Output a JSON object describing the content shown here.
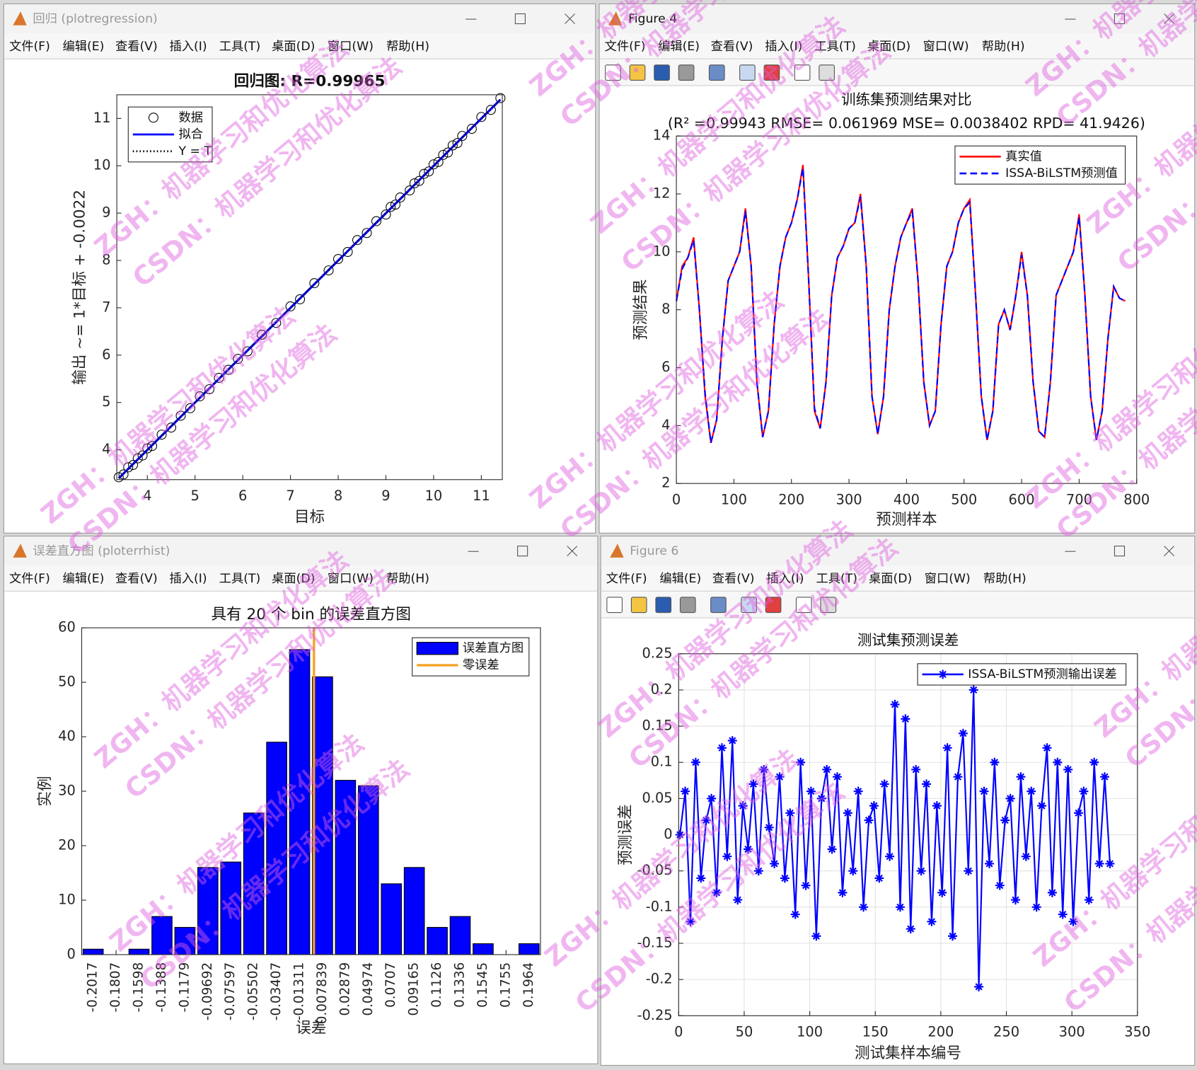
{
  "windows": [
    {
      "title": "回归 (plotregression)"
    },
    {
      "title": "Figure 4"
    },
    {
      "title": "误差直方图 (ploterrhist)"
    },
    {
      "title": "Figure 6"
    }
  ],
  "menu": [
    "文件(F)",
    "编辑(E)",
    "查看(V)",
    "插入(I)",
    "工具(T)",
    "桌面(D)",
    "窗口(W)",
    "帮助(H)"
  ],
  "watermarks": [
    "ZGH：机器学习和优化算法",
    "CSDN：机器学习和优化算法"
  ],
  "chart_data": [
    {
      "type": "scatter",
      "title": "回归图: R=0.99965",
      "x_label": "目标",
      "y_label": "输出 ~= 1*目标 + -0.0022",
      "xlim": [
        3.36,
        11.44
      ],
      "ylim": [
        3.37,
        11.5
      ],
      "xticks": [
        4,
        5,
        6,
        7,
        8,
        9,
        10,
        11
      ],
      "yticks": [
        4,
        5,
        6,
        7,
        8,
        9,
        10,
        11
      ],
      "grid": false,
      "legend": "northwest",
      "series": [
        {
          "name": "数据",
          "color": "#000000",
          "marker": "o",
          "linestyle": "none",
          "x": [
            3.4,
            3.5,
            3.6,
            3.7,
            3.8,
            3.9,
            4.0,
            4.1,
            4.3,
            4.5,
            4.7,
            4.9,
            5.1,
            5.3,
            5.5,
            5.7,
            5.9,
            6.1,
            6.4,
            6.7,
            7.0,
            7.2,
            7.5,
            7.8,
            8.0,
            8.2,
            8.4,
            8.6,
            8.8,
            9.0,
            9.1,
            9.2,
            9.3,
            9.5,
            9.6,
            9.7,
            9.8,
            9.9,
            10.0,
            10.1,
            10.2,
            10.3,
            10.4,
            10.5,
            10.6,
            10.8,
            11.0,
            11.2,
            11.4
          ],
          "values": [
            3.42,
            3.48,
            3.63,
            3.68,
            3.82,
            3.88,
            4.03,
            4.08,
            4.32,
            4.47,
            4.72,
            4.88,
            5.13,
            5.28,
            5.52,
            5.69,
            5.92,
            6.08,
            6.43,
            6.68,
            7.03,
            7.18,
            7.52,
            7.79,
            8.03,
            8.18,
            8.43,
            8.58,
            8.83,
            8.97,
            9.13,
            9.18,
            9.33,
            9.48,
            9.63,
            9.68,
            9.83,
            9.88,
            10.03,
            10.08,
            10.23,
            10.28,
            10.43,
            10.48,
            10.63,
            10.78,
            11.03,
            11.18,
            11.43
          ]
        },
        {
          "name": "拟合",
          "color": "#0000ff",
          "marker": "none",
          "linestyle": "-",
          "x": [
            3.4,
            11.4
          ],
          "values": [
            3.3978,
            11.3978
          ]
        },
        {
          "name": "Y = T",
          "color": "#000000",
          "marker": "none",
          "linestyle": ":",
          "x": [
            3.4,
            11.4
          ],
          "values": [
            3.4,
            11.4
          ]
        }
      ]
    },
    {
      "type": "line",
      "title": "训练集预测结果对比",
      "subtitle": "(R² =0.99943 RMSE= 0.061969 MSE= 0.0038402 RPD= 41.9426)",
      "x_label": "预测样本",
      "y_label": "预测结果",
      "xlim": [
        0,
        800
      ],
      "ylim": [
        2,
        14
      ],
      "xticks": [
        0,
        100,
        200,
        300,
        400,
        500,
        600,
        700,
        800
      ],
      "yticks": [
        2,
        4,
        6,
        8,
        10,
        12,
        14
      ],
      "grid": false,
      "legend": "northeast",
      "x": [
        0,
        10,
        20,
        30,
        40,
        50,
        60,
        70,
        80,
        90,
        100,
        110,
        120,
        130,
        140,
        150,
        160,
        170,
        180,
        190,
        200,
        210,
        220,
        230,
        240,
        250,
        260,
        270,
        280,
        290,
        300,
        310,
        320,
        330,
        340,
        350,
        360,
        370,
        380,
        390,
        400,
        410,
        420,
        430,
        440,
        450,
        460,
        470,
        480,
        490,
        500,
        510,
        520,
        530,
        540,
        550,
        560,
        570,
        580,
        590,
        600,
        610,
        620,
        630,
        640,
        650,
        660,
        670,
        680,
        690,
        700,
        710,
        720,
        730,
        740,
        750,
        760,
        770,
        780
      ],
      "series": [
        {
          "name": "真实值",
          "color": "#ff0000",
          "marker": "none",
          "linestyle": "-",
          "values": [
            8.3,
            9.5,
            9.8,
            10.5,
            8.0,
            5.0,
            3.4,
            4.2,
            7.0,
            9.0,
            9.5,
            10.0,
            11.5,
            9.5,
            5.5,
            3.6,
            4.5,
            7.5,
            9.5,
            10.5,
            11.0,
            11.8,
            13.0,
            9.0,
            4.5,
            3.9,
            5.5,
            8.5,
            9.8,
            10.2,
            10.8,
            11.0,
            12.0,
            9.5,
            5.0,
            3.7,
            5.0,
            8.0,
            9.5,
            10.5,
            11.0,
            11.5,
            9.0,
            5.5,
            4.0,
            4.5,
            7.5,
            9.5,
            10.0,
            11.0,
            11.5,
            11.8,
            8.5,
            5.0,
            3.5,
            4.5,
            7.5,
            8.0,
            7.3,
            8.5,
            10.0,
            8.5,
            5.5,
            3.8,
            3.6,
            5.5,
            8.5,
            9.0,
            9.5,
            10.0,
            11.3,
            8.5,
            5.0,
            3.5,
            4.5,
            7.0,
            8.8,
            8.4,
            8.3
          ]
        },
        {
          "name": "ISSA-BiLSTM预测值",
          "color": "#0000ff",
          "marker": "none",
          "linestyle": "--",
          "values": [
            8.3,
            9.4,
            9.8,
            10.4,
            8.0,
            5.1,
            3.4,
            4.2,
            7.0,
            9.0,
            9.5,
            10.0,
            11.4,
            9.5,
            5.5,
            3.6,
            4.5,
            7.5,
            9.5,
            10.5,
            11.0,
            11.8,
            12.9,
            9.0,
            4.6,
            3.9,
            5.5,
            8.5,
            9.8,
            10.2,
            10.8,
            11.0,
            11.9,
            9.5,
            5.0,
            3.7,
            5.0,
            8.0,
            9.5,
            10.5,
            11.0,
            11.4,
            9.0,
            5.5,
            4.0,
            4.5,
            7.5,
            9.5,
            10.0,
            11.0,
            11.5,
            11.7,
            8.5,
            5.0,
            3.5,
            4.5,
            7.5,
            8.0,
            7.3,
            8.5,
            9.9,
            8.5,
            5.5,
            3.8,
            3.6,
            5.5,
            8.5,
            9.0,
            9.5,
            10.0,
            11.2,
            8.5,
            5.0,
            3.5,
            4.5,
            7.0,
            8.8,
            8.4,
            8.3
          ]
        }
      ]
    },
    {
      "type": "bar",
      "title": "具有 20 个 bin 的误差直方图",
      "x_label": "误差",
      "y_label": "实例",
      "categories": [
        -0.2017,
        -0.1807,
        -0.1598,
        -0.1388,
        -0.1179,
        -0.09692,
        -0.07597,
        -0.05502,
        -0.03407,
        -0.01311,
        0.007839,
        0.02879,
        0.04974,
        0.0707,
        0.09165,
        0.1126,
        0.1336,
        0.1545,
        0.1755,
        0.1964
      ],
      "ylim": [
        0,
        60
      ],
      "yticks": [
        0,
        10,
        20,
        30,
        40,
        50,
        60
      ],
      "grid": false,
      "legend": "northeast",
      "series": [
        {
          "name": "误差直方图",
          "color": "#0000ff",
          "values": [
            1,
            0,
            1,
            7,
            5,
            16,
            17,
            26,
            39,
            56,
            51,
            32,
            31,
            13,
            16,
            5,
            7,
            2,
            0,
            2
          ]
        }
      ],
      "zero_line": {
        "name": "零误差",
        "value": 0,
        "color": "#f5a020"
      }
    },
    {
      "type": "line",
      "title": "测试集预测误差",
      "x_label": "测试集样本编号",
      "y_label": "预测误差",
      "xlim": [
        0,
        350
      ],
      "ylim": [
        -0.25,
        0.25
      ],
      "xticks": [
        0,
        50,
        100,
        150,
        200,
        250,
        300,
        350
      ],
      "yticks": [
        -0.25,
        -0.2,
        -0.15,
        -0.1,
        -0.05,
        0,
        0.05,
        0.1,
        0.15,
        0.2,
        0.25
      ],
      "grid": true,
      "legend": "northeast",
      "x": [
        1,
        5,
        9,
        13,
        17,
        21,
        25,
        29,
        33,
        37,
        41,
        45,
        49,
        53,
        57,
        61,
        65,
        69,
        73,
        77,
        81,
        85,
        89,
        93,
        97,
        101,
        105,
        109,
        113,
        117,
        121,
        125,
        129,
        133,
        137,
        141,
        145,
        149,
        153,
        157,
        161,
        165,
        169,
        173,
        177,
        181,
        185,
        189,
        193,
        197,
        201,
        205,
        209,
        213,
        217,
        221,
        225,
        229,
        233,
        237,
        241,
        245,
        249,
        253,
        257,
        261,
        265,
        269,
        273,
        277,
        281,
        285,
        289,
        293,
        297,
        301,
        305,
        309,
        313,
        317,
        321,
        325,
        329
      ],
      "series": [
        {
          "name": "ISSA-BiLSTM预测输出误差",
          "color": "#0000ff",
          "marker": "*",
          "linestyle": "-",
          "values": [
            0.0,
            0.06,
            -0.12,
            0.1,
            -0.06,
            0.02,
            0.05,
            -0.08,
            0.12,
            -0.03,
            0.13,
            -0.09,
            0.04,
            -0.02,
            0.07,
            -0.05,
            0.09,
            0.01,
            -0.04,
            0.08,
            -0.06,
            0.03,
            -0.11,
            0.1,
            -0.07,
            0.06,
            -0.14,
            0.05,
            0.09,
            -0.02,
            0.08,
            -0.08,
            0.03,
            -0.05,
            0.06,
            -0.1,
            0.02,
            0.04,
            -0.06,
            0.07,
            -0.03,
            0.18,
            -0.1,
            0.16,
            -0.13,
            0.09,
            -0.05,
            0.07,
            -0.12,
            0.04,
            -0.08,
            0.12,
            -0.14,
            0.08,
            0.14,
            -0.05,
            0.2,
            -0.21,
            0.06,
            -0.04,
            0.1,
            -0.07,
            0.02,
            0.05,
            -0.09,
            0.08,
            -0.03,
            0.06,
            -0.1,
            0.04,
            0.12,
            -0.08,
            0.1,
            -0.11,
            0.09,
            -0.12,
            0.03,
            0.06,
            -0.09,
            0.1,
            -0.04,
            0.08,
            -0.04
          ]
        }
      ]
    }
  ]
}
